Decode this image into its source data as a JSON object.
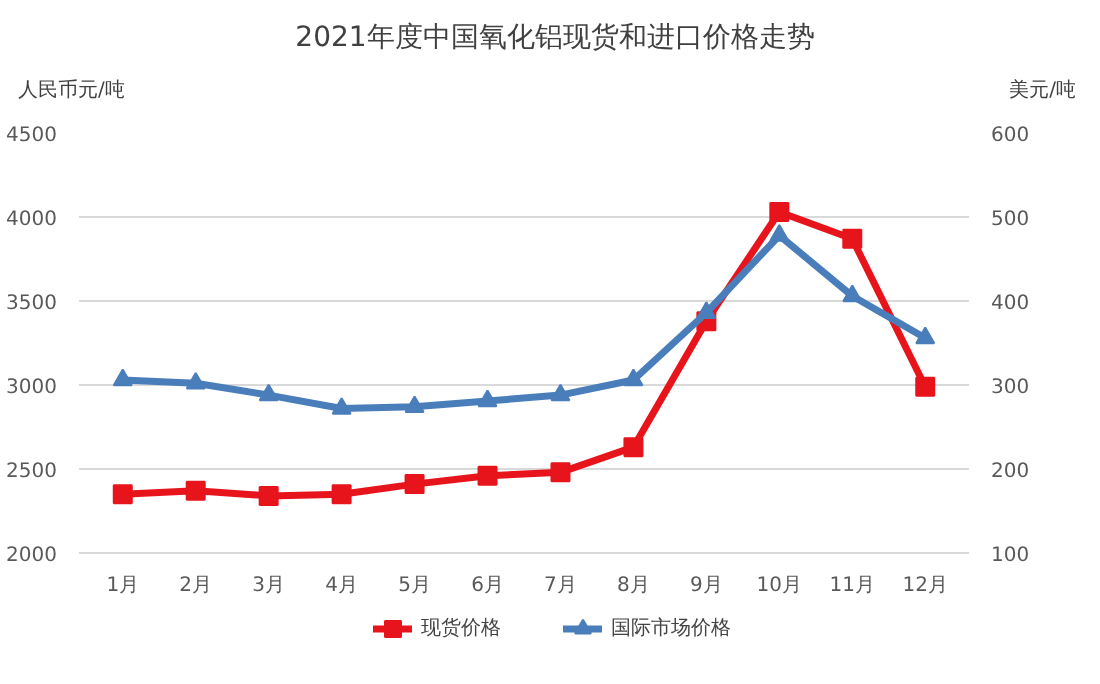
{
  "chart_data": {
    "type": "line",
    "title": "2021年度中国氧化铝现货和进口价格走势",
    "ylabel": "人民币元/吨",
    "y2label": "美元/吨",
    "categories": [
      "1月",
      "2月",
      "3月",
      "4月",
      "5月",
      "6月",
      "7月",
      "8月",
      "9月",
      "10月",
      "11月",
      "12月"
    ],
    "series": [
      {
        "name": "现货价格",
        "color": "#e8141b",
        "marker": "square",
        "values": [
          2350,
          2370,
          2340,
          2350,
          2410,
          2460,
          2480,
          2630,
          3380,
          4030,
          3870,
          2990
        ]
      },
      {
        "name": "国际市场价格",
        "color": "#4a7ebb",
        "marker": "triangle",
        "axis": "y2",
        "values": [
          306,
          302,
          288,
          272,
          274,
          281,
          288,
          306,
          386,
          478,
          406,
          356
        ]
      }
    ],
    "ylim": [
      2000,
      4500
    ],
    "yticks": [
      2000,
      2500,
      3000,
      3500,
      4000,
      4500
    ],
    "y2lim": [
      100,
      600
    ],
    "y2ticks": [
      100,
      200,
      300,
      400,
      500,
      600
    ],
    "grid": "y",
    "legend": "bottom"
  }
}
